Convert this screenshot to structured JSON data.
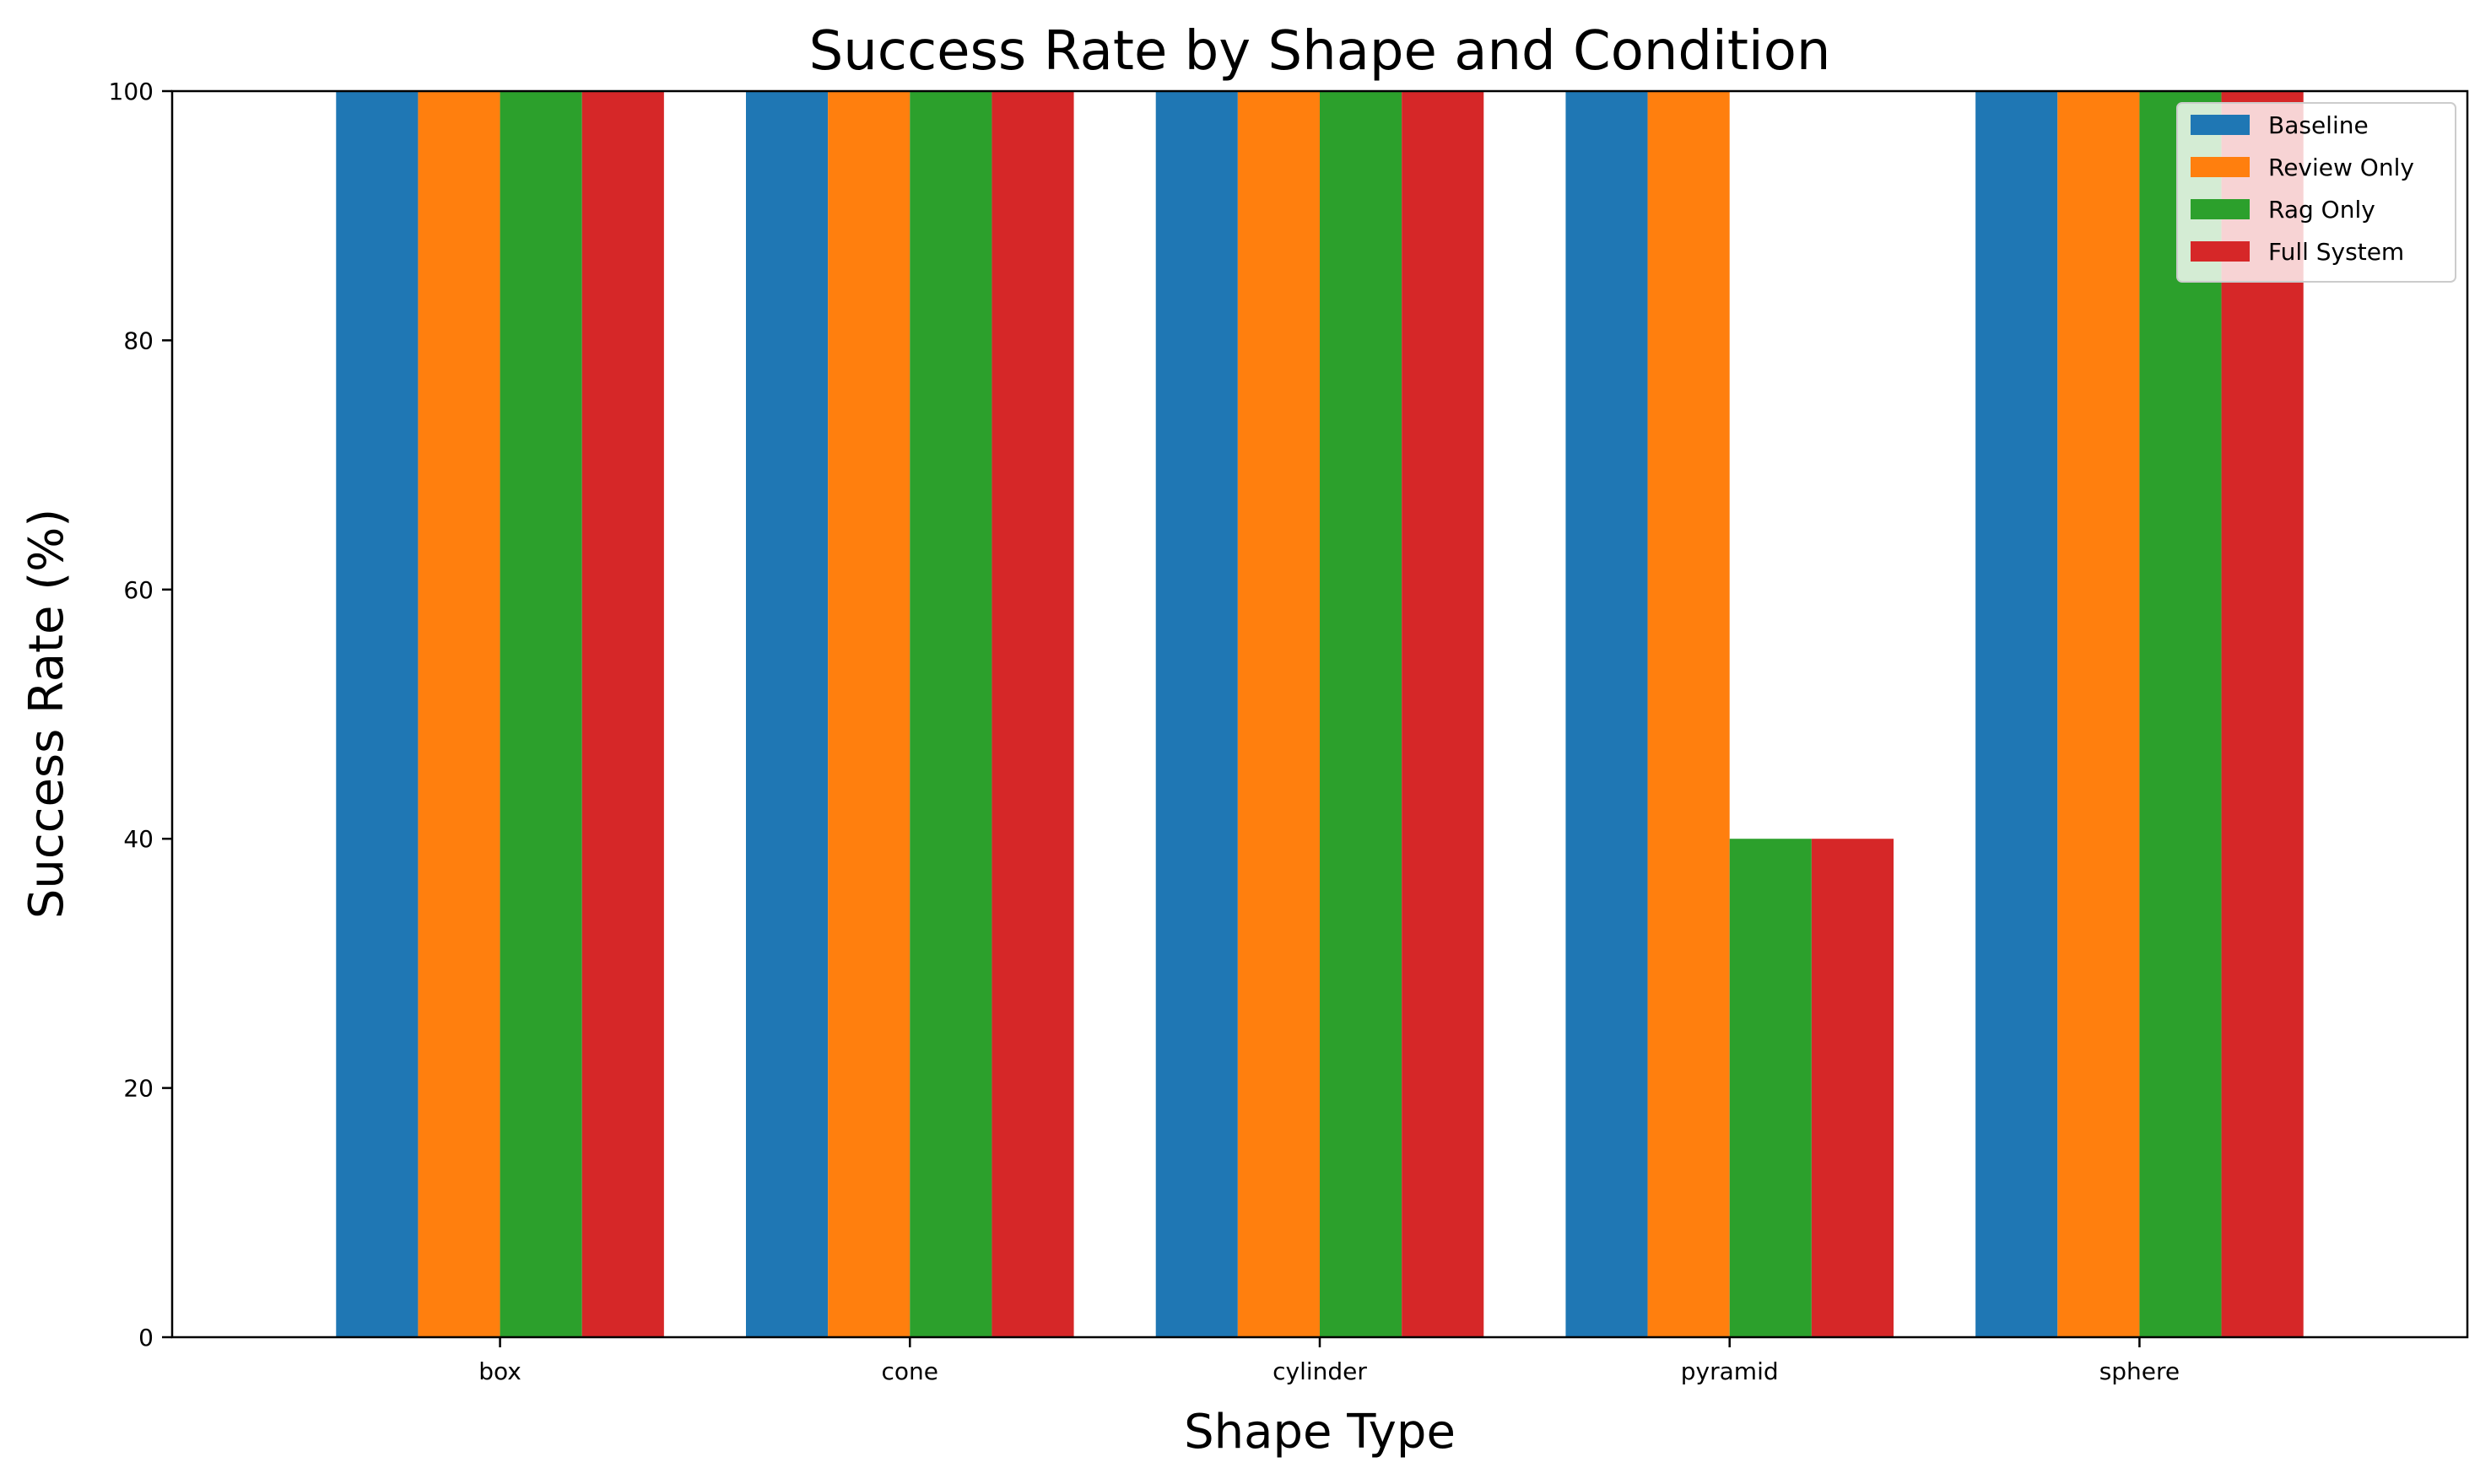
{
  "chart_data": {
    "type": "bar",
    "title": "Success Rate by Shape and Condition",
    "xlabel": "Shape Type",
    "ylabel": "Success Rate (%)",
    "categories": [
      "box",
      "cone",
      "cylinder",
      "pyramid",
      "sphere"
    ],
    "ylim": [
      0,
      100
    ],
    "yticks": [
      0,
      20,
      40,
      60,
      80,
      100
    ],
    "grid": false,
    "legend_position": "top-right",
    "series": [
      {
        "name": "Baseline",
        "color": "#1f77b4",
        "values": [
          100,
          100,
          100,
          100,
          100
        ]
      },
      {
        "name": "Review Only",
        "color": "#ff7f0e",
        "values": [
          100,
          100,
          100,
          100,
          100
        ]
      },
      {
        "name": "Rag Only",
        "color": "#2ca02c",
        "values": [
          100,
          100,
          100,
          40,
          100
        ]
      },
      {
        "name": "Full System",
        "color": "#d62728",
        "values": [
          100,
          100,
          100,
          40,
          100
        ]
      }
    ]
  }
}
